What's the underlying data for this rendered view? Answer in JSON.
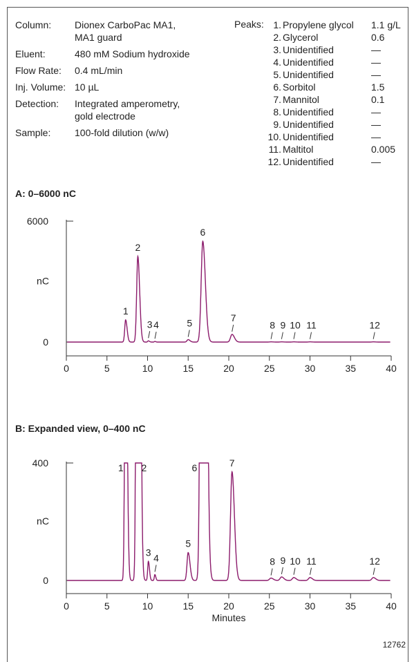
{
  "conditions": [
    {
      "label": "Column:",
      "value_lines": [
        "Dionex CarboPac MA1,",
        "MA1 guard"
      ]
    },
    {
      "label": "Eluent:",
      "value_lines": [
        "480 mM Sodium hydroxide"
      ]
    },
    {
      "label": "Flow Rate:",
      "value_lines": [
        "0.4 mL/min"
      ]
    },
    {
      "label": "Inj. Volume:",
      "value_lines": [
        "10 µL"
      ]
    },
    {
      "label": "Detection:",
      "value_lines": [
        "Integrated amperometry,",
        "gold electrode"
      ]
    },
    {
      "label": "Sample:",
      "value_lines": [
        "100-fold dilution (w/w)"
      ]
    }
  ],
  "peaks_label": "Peaks:",
  "peaks": [
    {
      "num": "1.",
      "name": "Propylene glycol",
      "amount": "1.1 g/L"
    },
    {
      "num": "2.",
      "name": "Glycerol",
      "amount": "0.6"
    },
    {
      "num": "3.",
      "name": "Unidentified",
      "amount": "—"
    },
    {
      "num": "4.",
      "name": "Unidentified",
      "amount": "—"
    },
    {
      "num": "5.",
      "name": "Unidentified",
      "amount": "—"
    },
    {
      "num": "6.",
      "name": "Sorbitol",
      "amount": "1.5"
    },
    {
      "num": "7.",
      "name": "Mannitol",
      "amount": "0.1"
    },
    {
      "num": "8.",
      "name": "Unidentified",
      "amount": "—"
    },
    {
      "num": "9.",
      "name": "Unidentified",
      "amount": "—"
    },
    {
      "num": "10.",
      "name": "Unidentified",
      "amount": "—"
    },
    {
      "num": "11.",
      "name": "Maltitol",
      "amount": "0.005"
    },
    {
      "num": "12.",
      "name": "Unidentified",
      "amount": "—"
    }
  ],
  "figure_number": "12762",
  "line_color": "#8b1a6b",
  "chart_data": [
    {
      "type": "line",
      "title": "A: 0–6000 nC",
      "ylabel": "nC",
      "xlabel": "",
      "xlim": [
        0,
        40
      ],
      "ylim": [
        0,
        6000
      ],
      "x_ticks": [
        0,
        5,
        10,
        15,
        20,
        25,
        30,
        35,
        40
      ],
      "y_ticks": [
        {
          "value": 6000,
          "label": "6000"
        },
        {
          "value": 0,
          "label": "0"
        }
      ],
      "peaks": [
        {
          "label": "1",
          "x": 7.3,
          "y": 1100
        },
        {
          "label": "2",
          "x": 8.8,
          "y": 4250
        },
        {
          "label": "3",
          "x": 10.1,
          "y": 60
        },
        {
          "label": "4",
          "x": 10.9,
          "y": 30
        },
        {
          "label": "5",
          "x": 15.0,
          "y": 120
        },
        {
          "label": "6",
          "x": 16.8,
          "y": 5000
        },
        {
          "label": "7",
          "x": 20.4,
          "y": 380
        },
        {
          "label": "8",
          "x": 25.2,
          "y": 10
        },
        {
          "label": "9",
          "x": 26.5,
          "y": 10
        },
        {
          "label": "10",
          "x": 28.0,
          "y": 10
        },
        {
          "label": "11",
          "x": 30.0,
          "y": 10
        },
        {
          "label": "12",
          "x": 37.8,
          "y": 10
        }
      ]
    },
    {
      "type": "line",
      "title": "B: Expanded view, 0–400 nC",
      "ylabel": "nC",
      "xlabel": "Minutes",
      "xlim": [
        0,
        40
      ],
      "ylim": [
        0,
        400
      ],
      "x_ticks": [
        0,
        5,
        10,
        15,
        20,
        25,
        30,
        35,
        40
      ],
      "y_ticks": [
        {
          "value": 400,
          "label": "400"
        },
        {
          "value": 0,
          "label": "0"
        }
      ],
      "peaks": [
        {
          "label": "1",
          "x": 7.3,
          "y": 1100,
          "offscale": true
        },
        {
          "label": "2",
          "x": 8.8,
          "y": 4250,
          "offscale": true
        },
        {
          "label": "3",
          "x": 10.1,
          "y": 65
        },
        {
          "label": "4",
          "x": 10.9,
          "y": 20
        },
        {
          "label": "5",
          "x": 15.0,
          "y": 95
        },
        {
          "label": "6",
          "x": 16.8,
          "y": 5000,
          "offscale": true
        },
        {
          "label": "7",
          "x": 20.4,
          "y": 370
        },
        {
          "label": "8",
          "x": 25.2,
          "y": 8
        },
        {
          "label": "9",
          "x": 26.5,
          "y": 12
        },
        {
          "label": "10",
          "x": 28.0,
          "y": 10
        },
        {
          "label": "11",
          "x": 30.0,
          "y": 10
        },
        {
          "label": "12",
          "x": 37.8,
          "y": 10
        }
      ]
    }
  ]
}
